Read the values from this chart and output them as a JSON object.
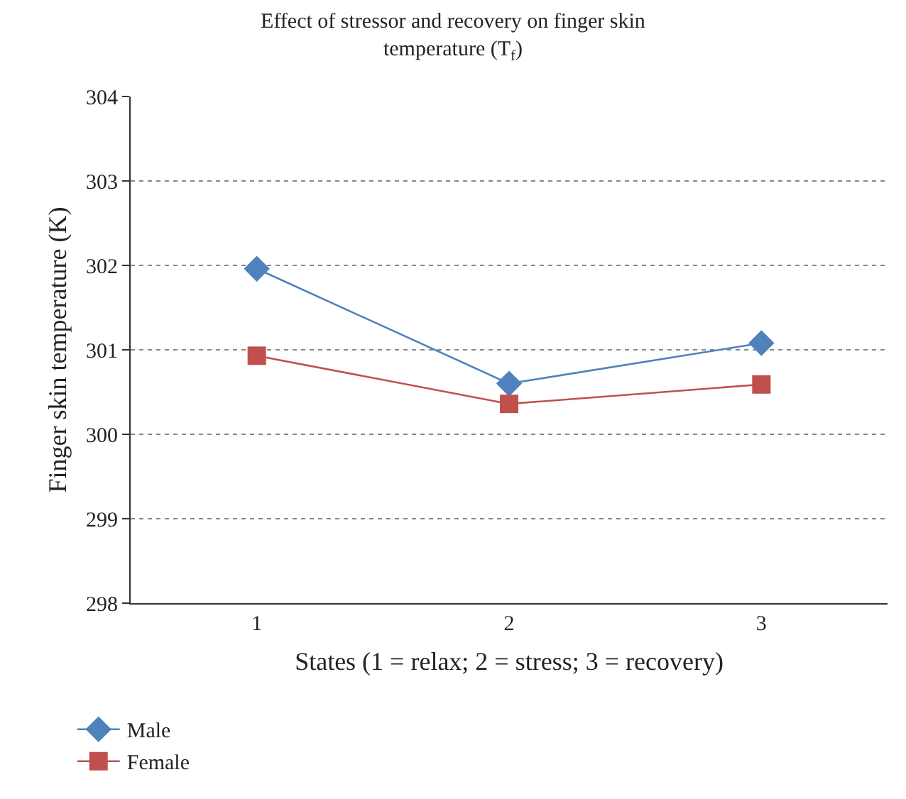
{
  "chart_data": {
    "type": "line",
    "title": "Effect of stressor and recovery on finger skin temperature (T$_{f}$)",
    "xlabel": "States (1 = relax; 2 = stress; 3 = recovery)",
    "ylabel": "Finger skin temperature (K)",
    "categories": [
      "1",
      "2",
      "3"
    ],
    "series": [
      {
        "name": "Male",
        "color": "#4f81bd",
        "marker": "diamond",
        "values": [
          301.96,
          300.6,
          301.08
        ]
      },
      {
        "name": "Female",
        "color": "#c0504d",
        "marker": "square",
        "values": [
          300.93,
          300.36,
          300.59
        ]
      }
    ],
    "ylim": [
      298,
      304
    ],
    "yticks": [
      298,
      299,
      300,
      301,
      302,
      303,
      304
    ],
    "grid": "y",
    "legend": "bottom left",
    "line_style": "solid"
  }
}
